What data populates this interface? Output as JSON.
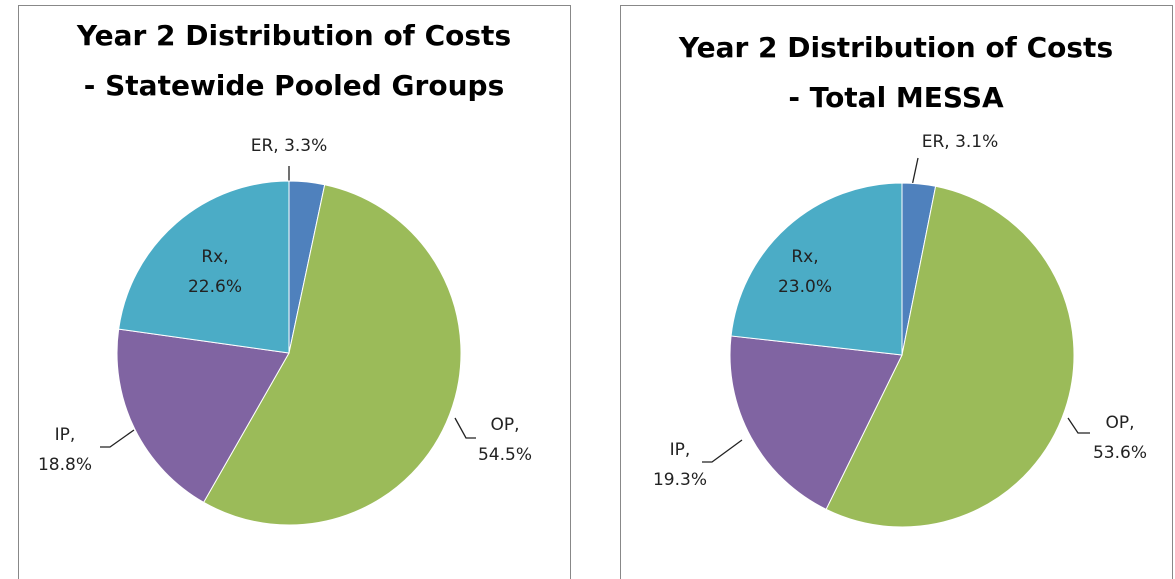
{
  "chart_data": [
    {
      "type": "pie",
      "title": "Year 2 Distribution of Costs - Statewide Pooled Groups",
      "values": [
        3.3,
        54.5,
        18.8,
        22.6
      ],
      "value_labels": [
        "ER, 3.3%",
        "OP, 54.5%",
        "IP, 18.8%",
        "Rx, 22.6%"
      ],
      "colors": [
        "#4f81bd",
        "#9bbb59",
        "#8064a2",
        "#4bacc6"
      ]
    },
    {
      "type": "pie",
      "title": "Year 2 Distribution of Costs - Total MESSA",
      "values": [
        3.1,
        53.6,
        19.3,
        23.0
      ],
      "value_labels": [
        "ER, 3.1%",
        "OP, 53.6%",
        "IP, 19.3%",
        "Rx, 23.0%"
      ],
      "colors": [
        "#4f81bd",
        "#9bbb59",
        "#8064a2",
        "#4bacc6"
      ]
    }
  ]
}
